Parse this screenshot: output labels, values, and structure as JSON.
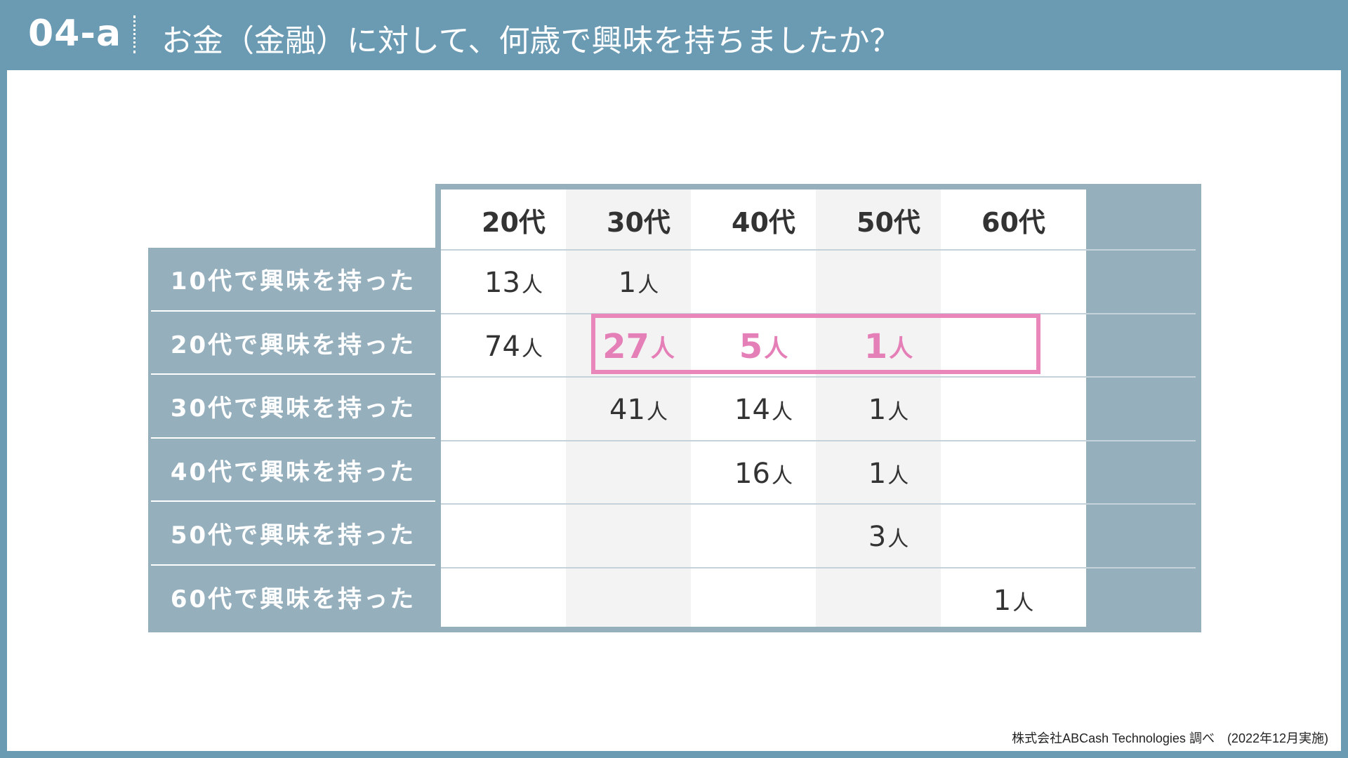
{
  "header": {
    "code": "04-a",
    "title": "お金（金融）に対して、何歳で興味を持ちましたか？"
  },
  "table": {
    "columns": [
      "20代",
      "30代",
      "40代",
      "50代",
      "60代"
    ],
    "unit": "人",
    "rows": [
      {
        "label": "10代で興味を持った",
        "cells": [
          "13",
          "1",
          "",
          "",
          ""
        ]
      },
      {
        "label": "20代で興味を持った",
        "cells": [
          "74",
          "27",
          "5",
          "1",
          ""
        ]
      },
      {
        "label": "30代で興味を持った",
        "cells": [
          "",
          "41",
          "14",
          "1",
          ""
        ]
      },
      {
        "label": "40代で興味を持った",
        "cells": [
          "",
          "",
          "16",
          "1",
          ""
        ]
      },
      {
        "label": "50代で興味を持った",
        "cells": [
          "",
          "",
          "",
          "3",
          ""
        ]
      },
      {
        "label": "60代で興味を持った",
        "cells": [
          "",
          "",
          "",
          "",
          "1"
        ]
      }
    ],
    "highlight": {
      "row": 1,
      "columns": [
        1,
        2,
        3
      ],
      "color": "#e987bb"
    }
  },
  "footer": {
    "source": "株式会社ABCash Technologies 調べ　(2022年12月実施)"
  },
  "colors": {
    "frame": "#6b9ab3",
    "row_label_bg": "#95afbd",
    "highlight": "#e987bb"
  }
}
